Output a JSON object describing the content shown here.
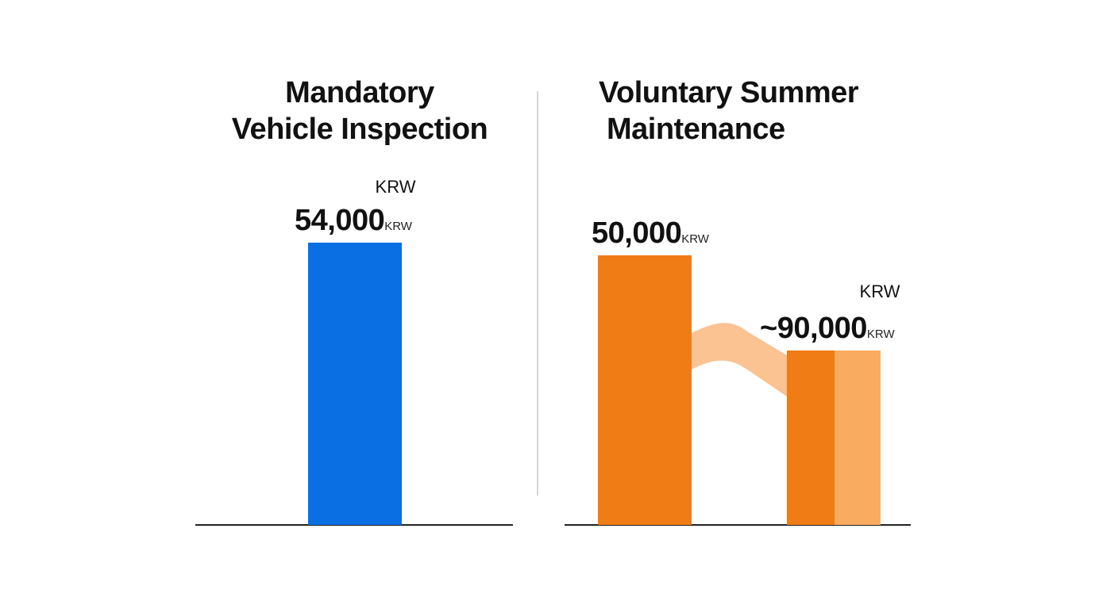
{
  "chart_data": [
    {
      "type": "bar",
      "title": "Mandatory Vehicle Inspection",
      "title_lines": [
        "Mandatory",
        "Vehicle Inspection"
      ],
      "unit": "KRW",
      "categories": [
        ""
      ],
      "series": [
        {
          "values": [
            54000
          ],
          "labels": [
            "54,000"
          ],
          "color": "#0a6fe3"
        }
      ],
      "ylim": [
        0,
        100000
      ],
      "grid": false
    },
    {
      "type": "bar",
      "title": "Voluntary Summer Maintenance",
      "title_lines": [
        "Voluntary Summer",
        "Maintenance"
      ],
      "unit": "KRW",
      "categories": [
        "",
        ""
      ],
      "series": [
        {
          "values": [
            50000,
            90000
          ],
          "labels": [
            "50,000",
            "~90,000"
          ],
          "color": "#f07c16",
          "secondary_color": "#f9ab5f",
          "connector_color": "#fbc292"
        }
      ],
      "ylim": [
        0,
        100000
      ],
      "grid": false
    }
  ]
}
